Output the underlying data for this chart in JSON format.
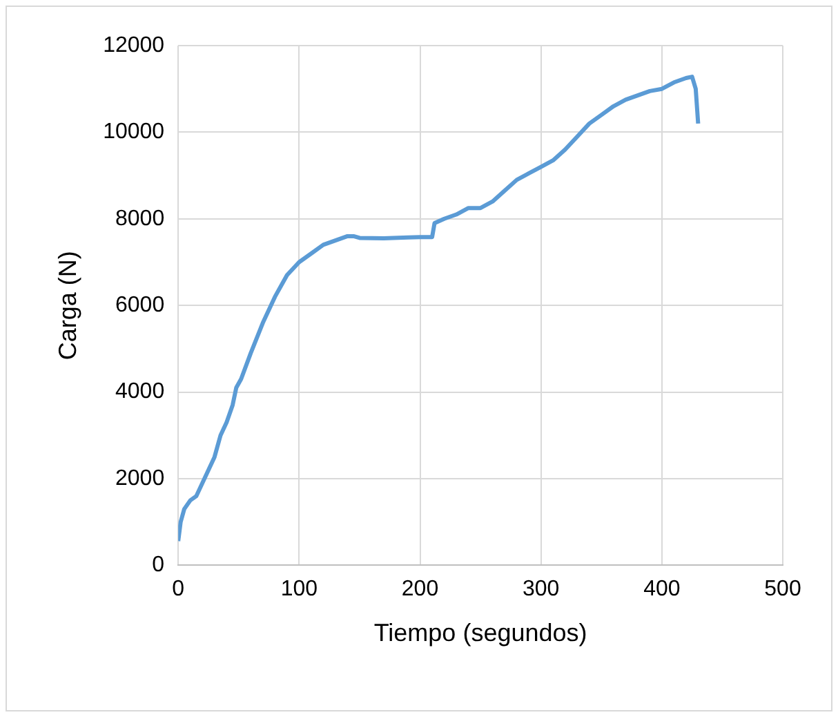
{
  "chart_data": {
    "type": "line",
    "xlabel": "Tiempo (segundos)",
    "ylabel": "Carga (N)",
    "x": [
      0,
      2,
      5,
      10,
      15,
      20,
      25,
      30,
      35,
      40,
      45,
      48,
      52,
      60,
      70,
      80,
      90,
      100,
      110,
      120,
      130,
      140,
      145,
      150,
      170,
      190,
      200,
      210,
      212,
      220,
      230,
      240,
      250,
      260,
      270,
      280,
      290,
      300,
      310,
      320,
      330,
      340,
      350,
      360,
      370,
      380,
      390,
      400,
      410,
      420,
      425,
      428,
      430
    ],
    "series": [
      {
        "color": "#5b9bd5",
        "values": [
          560,
          1000,
          1300,
          1500,
          1600,
          1900,
          2200,
          2500,
          3000,
          3300,
          3700,
          4100,
          4300,
          4900,
          5600,
          6200,
          6700,
          7000,
          7200,
          7400,
          7500,
          7600,
          7600,
          7560,
          7550,
          7570,
          7580,
          7580,
          7900,
          8000,
          8100,
          8250,
          8250,
          8400,
          8650,
          8900,
          9050,
          9200,
          9350,
          9600,
          9900,
          10200,
          10400,
          10600,
          10750,
          10850,
          10950,
          11000,
          11150,
          11250,
          11280,
          11000,
          10200
        ]
      }
    ],
    "xlim": [
      0,
      500
    ],
    "xticks": [
      0,
      100,
      200,
      300,
      400,
      500
    ],
    "ylim": [
      0,
      12000
    ],
    "yticks": [
      0,
      2000,
      4000,
      6000,
      8000,
      10000,
      12000
    ],
    "grid": true,
    "legend": false,
    "marker": "none",
    "line_style": "solid"
  }
}
